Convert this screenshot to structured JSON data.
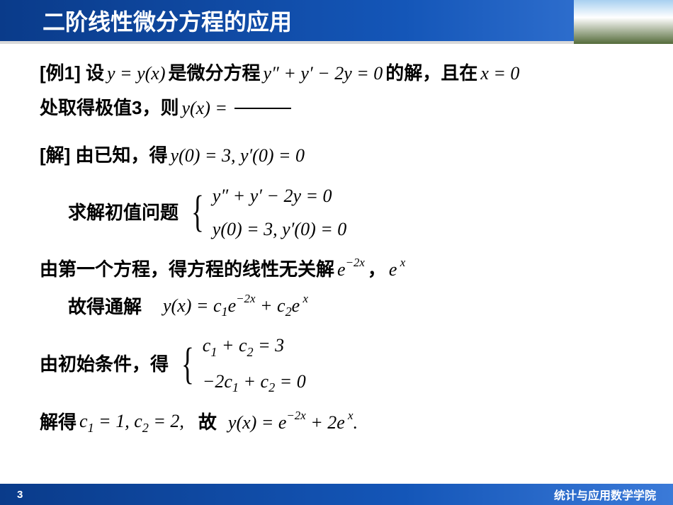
{
  "header": {
    "title": "二阶线性微分方程的应用"
  },
  "body": {
    "l1a": "[例1] 设",
    "l1b": "y = y(x)",
    "l1c": "是微分方程",
    "l1d": "y″ + y′ − 2y = 0",
    "l1e": "的解，且在",
    "l1f": "x = 0",
    "l2a": "处取得极值3，则",
    "l2b": "y(x) =",
    "l3a": "[解] 由已知，得",
    "l3b": "y(0) = 3, y′(0) = 0",
    "l4a": "求解初值问题",
    "l4b": "y″ + y′ − 2y = 0",
    "l4c": "y(0) = 3, y′(0) = 0",
    "l5a": "由第一个方程，得方程的线性无关解",
    "l5b_html": "e<sup>−2x</sup>",
    "l5c": "，",
    "l5d_html": "e<sup>&nbsp;x</sup>",
    "l6a": "故得通解",
    "l6b_html": "y(x) = c<sub>1</sub>e<sup>−2x</sup> + c<sub>2</sub>e<sup>&nbsp;x</sup>",
    "l7a": "由初始条件，得",
    "l7b_html": "c<sub>1</sub> + c<sub>2</sub> = 3",
    "l7c_html": "−2c<sub>1</sub> + c<sub>2</sub> = 0",
    "l8a": "解得",
    "l8b_html": "c<sub>1</sub> = 1, c<sub>2</sub> = 2,",
    "l8c": "故",
    "l8d_html": "y(x) = e<sup>−2x</sup> + 2e<sup>&nbsp;x</sup>."
  },
  "footer": {
    "page": "3",
    "dept": "统计与应用数学学院"
  },
  "colors": {
    "header_grad_start": "#0a3b8a",
    "header_grad_end": "#3b7ad8",
    "text": "#000000",
    "title_text": "#ffffff"
  }
}
